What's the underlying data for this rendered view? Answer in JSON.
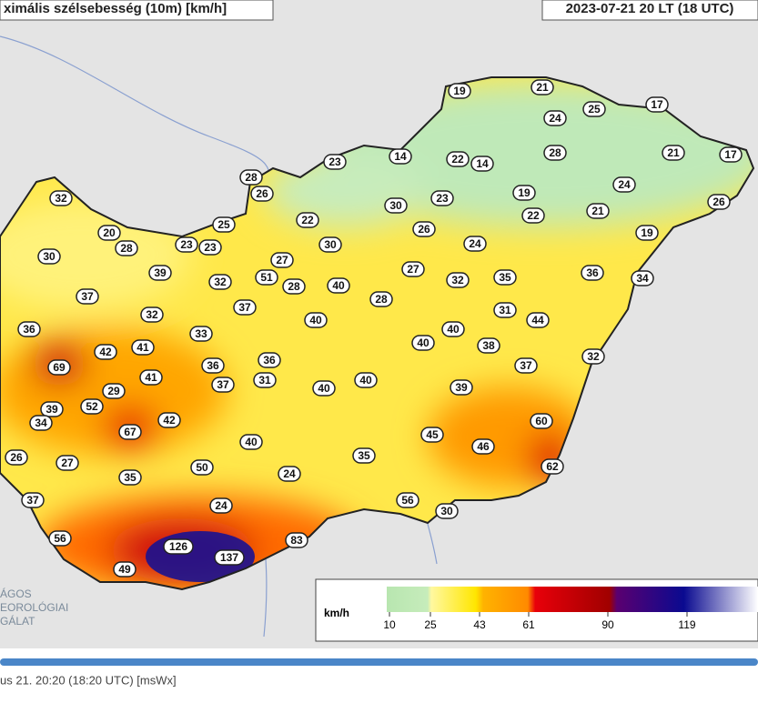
{
  "header": {
    "title": "ximális szélsebesség (10m) [km/h]",
    "time": "2023-07-21 20 LT  (18 UTC)"
  },
  "stations": [
    19,
    21,
    24,
    25,
    17,
    28,
    21,
    17,
    14,
    22,
    14,
    23,
    28,
    26,
    24,
    19,
    23,
    30,
    26,
    21,
    22,
    22,
    25,
    32,
    20,
    26,
    19,
    24,
    30,
    23,
    23,
    28,
    30,
    27,
    51,
    28,
    39,
    32,
    27,
    32,
    35,
    36,
    34,
    40,
    28,
    37,
    37,
    31,
    44,
    32,
    40,
    36,
    33,
    40,
    40,
    38,
    42,
    41,
    69,
    36,
    36,
    37,
    32,
    41,
    37,
    31,
    40,
    40,
    29,
    39,
    39,
    52,
    34,
    42,
    67,
    60,
    45,
    46,
    40,
    26,
    27,
    35,
    50,
    62,
    24,
    35,
    37,
    56,
    24,
    30,
    56,
    83,
    126,
    137,
    49
  ],
  "legend": {
    "unit": "km/h",
    "ticks": [
      10,
      25,
      43,
      61,
      90,
      119
    ]
  },
  "logo": [
    "ÁGOS",
    "EOROLÓGIAI",
    "GÁLAT"
  ],
  "footer": "us 21. 20:20 (18:20  UTC)  [msWx]"
}
